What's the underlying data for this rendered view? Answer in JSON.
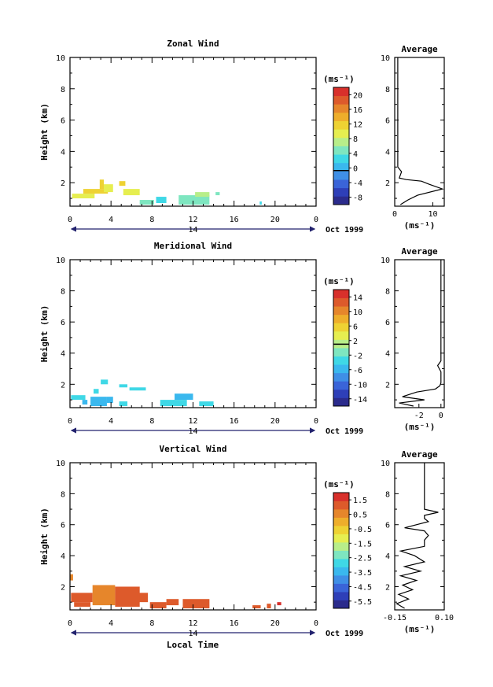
{
  "x_axis_label": "Local Time",
  "date_label": "Oct 1999",
  "day_label": "14",
  "colorbar_unit": "(ms⁻¹)",
  "avg_unit": "(ms⁻¹)",
  "colormap": [
    "#2b2b8c",
    "#2e3fb8",
    "#3a64d8",
    "#3f8fe6",
    "#3ab8ee",
    "#3fd8e6",
    "#7ee6c0",
    "#b8ee8a",
    "#e6ee50",
    "#eed233",
    "#eeae2b",
    "#e6862b",
    "#dd5a2b",
    "#d8302b"
  ],
  "chart_data": [
    {
      "type": "heatmap",
      "title": "Zonal Wind",
      "ylabel": "Height (km)",
      "xlim": [
        0,
        24
      ],
      "ylim": [
        0.5,
        10
      ],
      "xticks": [
        "0",
        "4",
        "8",
        "12",
        "16",
        "20",
        "0"
      ],
      "yticks": [
        "2",
        "4",
        "6",
        "8",
        "10"
      ],
      "colorbar": {
        "min": -9,
        "max": 22,
        "zero_line": 0,
        "ticks": [
          "20",
          "16",
          "12",
          "8",
          "4",
          "0",
          "-4",
          "-8"
        ]
      },
      "cells": [
        {
          "x": 0.2,
          "x2": 2.4,
          "y": 1.0,
          "y2": 1.3,
          "v": 9
        },
        {
          "x": 1.3,
          "x2": 3.7,
          "y": 1.3,
          "y2": 1.6,
          "v": 11
        },
        {
          "x": 2.9,
          "x2": 3.3,
          "y": 1.6,
          "y2": 2.2,
          "v": 12
        },
        {
          "x": 3.3,
          "x2": 4.2,
          "y": 1.4,
          "y2": 1.9,
          "v": 10
        },
        {
          "x": 4.8,
          "x2": 5.4,
          "y": 1.8,
          "y2": 2.1,
          "v": 11
        },
        {
          "x": 5.2,
          "x2": 6.8,
          "y": 1.2,
          "y2": 1.6,
          "v": 9
        },
        {
          "x": 6.8,
          "x2": 8.2,
          "y": 0.6,
          "y2": 0.9,
          "v": 5
        },
        {
          "x": 8.4,
          "x2": 9.4,
          "y": 0.7,
          "y2": 1.1,
          "v": 4
        },
        {
          "x": 10.6,
          "x2": 13.6,
          "y": 0.6,
          "y2": 1.2,
          "v": 6
        },
        {
          "x": 12.2,
          "x2": 13.6,
          "y": 1.1,
          "y2": 1.4,
          "v": 7
        },
        {
          "x": 14.2,
          "x2": 14.6,
          "y": 1.2,
          "y2": 1.4,
          "v": 6
        },
        {
          "x": 18.5,
          "x2": 18.7,
          "y": 0.6,
          "y2": 0.8,
          "v": 3
        }
      ],
      "average": {
        "xlim": [
          0,
          13
        ],
        "xticks": [
          "0",
          "10"
        ],
        "xtick_values": [
          0,
          10
        ],
        "yticks": [
          "2",
          "4",
          "6",
          "8",
          "10"
        ],
        "x": [
          1.5,
          3.5,
          6,
          12.5,
          9,
          7,
          3,
          1.2,
          1.8,
          0.8,
          0.8
        ],
        "y": [
          0.6,
          0.9,
          1.2,
          1.6,
          1.9,
          2.1,
          2.2,
          2.3,
          2.7,
          3.0,
          10
        ]
      }
    },
    {
      "type": "heatmap",
      "title": "Meridional Wind",
      "ylabel": "Height (km)",
      "xlim": [
        0,
        24
      ],
      "ylim": [
        0.5,
        10
      ],
      "xticks": [
        "0",
        "4",
        "8",
        "12",
        "16",
        "20",
        "0"
      ],
      "yticks": [
        "2",
        "4",
        "6",
        "8",
        "10"
      ],
      "colorbar": {
        "min": -16,
        "max": 16,
        "zero_line": 1,
        "ticks": [
          "14",
          "10",
          "6",
          "2",
          "-2",
          "-6",
          "-10",
          "-14"
        ]
      },
      "cells": [
        {
          "x": 0.1,
          "x2": 1.5,
          "y": 1.0,
          "y2": 1.3,
          "v": -4
        },
        {
          "x": 1.2,
          "x2": 1.7,
          "y": 0.7,
          "y2": 1.0,
          "v": -5
        },
        {
          "x": 2.0,
          "x2": 3.6,
          "y": 0.6,
          "y2": 1.2,
          "v": -5
        },
        {
          "x": 2.3,
          "x2": 2.8,
          "y": 1.4,
          "y2": 1.7,
          "v": -4
        },
        {
          "x": 3.0,
          "x2": 3.7,
          "y": 2.0,
          "y2": 2.3,
          "v": -4
        },
        {
          "x": 3.6,
          "x2": 4.2,
          "y": 0.8,
          "y2": 1.2,
          "v": -5
        },
        {
          "x": 4.8,
          "x2": 5.6,
          "y": 0.6,
          "y2": 0.9,
          "v": -4
        },
        {
          "x": 4.8,
          "x2": 5.6,
          "y": 1.8,
          "y2": 2.0,
          "v": -4
        },
        {
          "x": 5.8,
          "x2": 7.4,
          "y": 1.6,
          "y2": 1.8,
          "v": -3
        },
        {
          "x": 8.8,
          "x2": 11.4,
          "y": 0.6,
          "y2": 1.0,
          "v": -4
        },
        {
          "x": 10.2,
          "x2": 12.0,
          "y": 1.0,
          "y2": 1.4,
          "v": -5
        },
        {
          "x": 12.6,
          "x2": 14.0,
          "y": 0.6,
          "y2": 0.9,
          "v": -4
        }
      ],
      "average": {
        "xlim": [
          -4.2,
          0.3
        ],
        "xticks": [
          "-2",
          "0"
        ],
        "xtick_values": [
          -2,
          0
        ],
        "yticks": [
          "2",
          "4",
          "6",
          "8",
          "10"
        ],
        "x": [
          -2.5,
          -3.8,
          -1.5,
          -3.5,
          -2.2,
          -0.5,
          -0.1,
          0,
          0,
          -0.3,
          0,
          0
        ],
        "y": [
          0.6,
          0.8,
          1.0,
          1.2,
          1.5,
          1.7,
          1.9,
          2.1,
          2.8,
          3.2,
          3.5,
          10
        ]
      }
    },
    {
      "type": "heatmap",
      "title": "Vertical Wind",
      "ylabel": "Height (km)",
      "xlabel": "Local Time",
      "xlim": [
        0,
        24
      ],
      "ylim": [
        0.5,
        10
      ],
      "xticks": [
        "0",
        "4",
        "8",
        "12",
        "16",
        "20",
        "0"
      ],
      "yticks": [
        "2",
        "4",
        "6",
        "8",
        "10"
      ],
      "colorbar": {
        "min": -7,
        "max": 2,
        "zero_line": null,
        "ticks": [
          "1.5",
          "0.5",
          "-0.5",
          "-1.5",
          "-2.5",
          "-3.5",
          "-4.5",
          "-5.5"
        ]
      },
      "cells": [
        {
          "x": 0.0,
          "x2": 0.3,
          "y": 2.4,
          "y2": 2.8,
          "v": 0.6
        },
        {
          "x": 0.1,
          "x2": 2.2,
          "y": 1.0,
          "y2": 1.6,
          "v": 0.8
        },
        {
          "x": 0.4,
          "x2": 2.0,
          "y": 0.7,
          "y2": 1.0,
          "v": 0.9
        },
        {
          "x": 2.2,
          "x2": 4.4,
          "y": 0.8,
          "y2": 2.1,
          "v": 0.7
        },
        {
          "x": 4.4,
          "x2": 6.8,
          "y": 0.7,
          "y2": 2.0,
          "v": 0.8
        },
        {
          "x": 6.6,
          "x2": 7.6,
          "y": 1.0,
          "y2": 1.6,
          "v": 1.2
        },
        {
          "x": 7.8,
          "x2": 9.4,
          "y": 0.6,
          "y2": 1.0,
          "v": 1.1
        },
        {
          "x": 9.4,
          "x2": 10.6,
          "y": 0.8,
          "y2": 1.2,
          "v": 0.9
        },
        {
          "x": 11.0,
          "x2": 13.6,
          "y": 0.6,
          "y2": 1.2,
          "v": 1.0
        },
        {
          "x": 17.8,
          "x2": 18.6,
          "y": 0.6,
          "y2": 0.8,
          "v": 1.3
        },
        {
          "x": 19.2,
          "x2": 19.6,
          "y": 0.6,
          "y2": 0.9,
          "v": 1.1
        },
        {
          "x": 20.2,
          "x2": 20.6,
          "y": 0.8,
          "y2": 1.0,
          "v": 1.4
        }
      ],
      "average": {
        "xlim": [
          -0.15,
          0.1
        ],
        "xticks": [
          "-0.15",
          "0.10"
        ],
        "xtick_values": [
          -0.15,
          0.1
        ],
        "yticks": [
          "2",
          "4",
          "6",
          "8",
          "10"
        ],
        "x": [
          -0.1,
          -0.14,
          -0.08,
          -0.13,
          -0.06,
          -0.11,
          -0.04,
          -0.12,
          -0.02,
          -0.1,
          0.0,
          -0.05,
          -0.12,
          0.0,
          0.0,
          0.02,
          0.0,
          -0.1,
          0.02,
          0.0,
          0.0,
          0.07,
          0.0,
          0.0
        ],
        "y": [
          0.6,
          0.9,
          1.2,
          1.5,
          1.8,
          2.1,
          2.4,
          2.7,
          3.0,
          3.3,
          3.6,
          4.0,
          4.3,
          4.6,
          5.0,
          5.3,
          5.6,
          5.8,
          6.2,
          6.4,
          6.6,
          6.8,
          7.0,
          10
        ]
      }
    }
  ]
}
